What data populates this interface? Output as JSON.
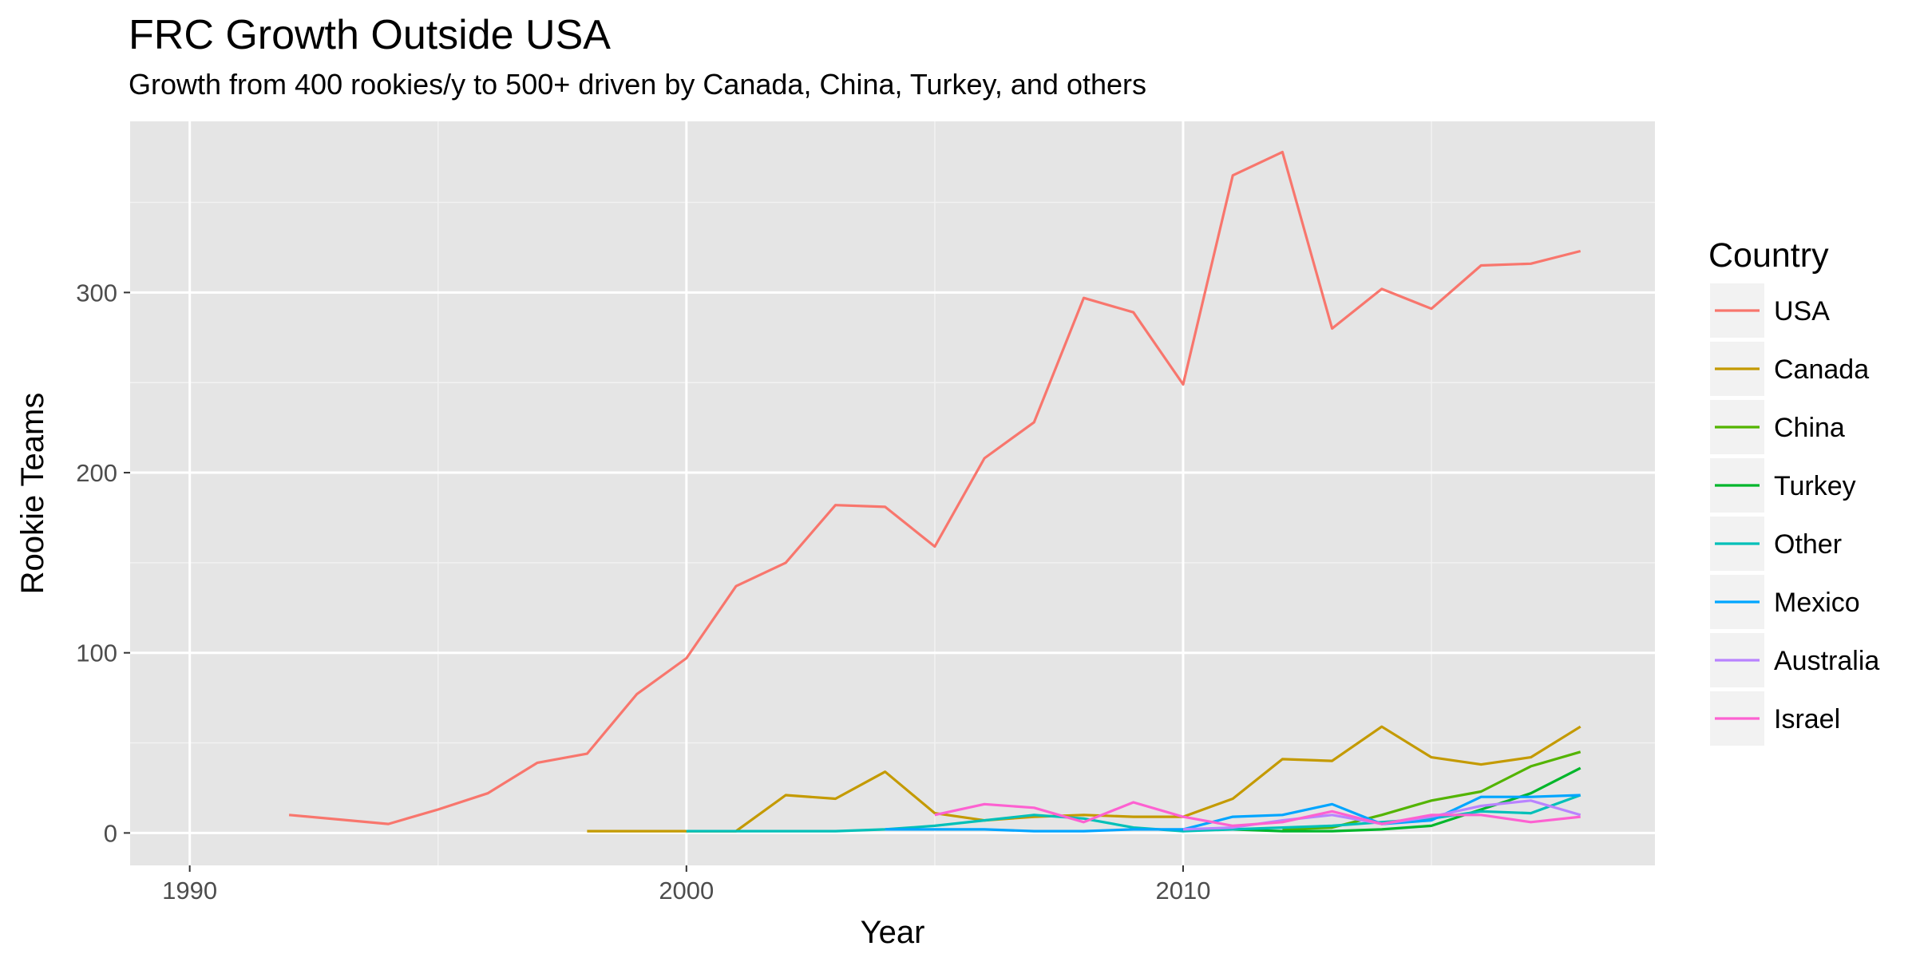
{
  "chart_data": {
    "type": "line",
    "title": "FRC Growth Outside USA",
    "subtitle": "Growth from 400 rookies/y to 500+ driven by Canada, China, Turkey, and others",
    "xlabel": "Year",
    "ylabel": "Rookie Teams",
    "xlim": [
      1988.8,
      2019.5
    ],
    "ylim": [
      -18,
      395
    ],
    "x_ticks": [
      1990,
      2000,
      2010
    ],
    "y_ticks": [
      0,
      100,
      200,
      300
    ],
    "grid": true,
    "legend_title": "Country",
    "legend_position": "right",
    "background": "#e5e5e5",
    "series": [
      {
        "name": "USA",
        "color": "#f8766d",
        "x": [
          1992,
          1994,
          1995,
          1996,
          1997,
          1998,
          1999,
          2000,
          2001,
          2002,
          2003,
          2004,
          2005,
          2006,
          2007,
          2008,
          2009,
          2010,
          2011,
          2012,
          2013,
          2014,
          2015,
          2016,
          2017,
          2018
        ],
        "y": [
          10,
          5,
          13,
          22,
          39,
          44,
          77,
          97,
          137,
          150,
          182,
          181,
          159,
          208,
          228,
          297,
          289,
          249,
          365,
          378,
          280,
          302,
          291,
          315,
          316,
          323
        ]
      },
      {
        "name": "Canada",
        "color": "#c49a00",
        "x": [
          1998,
          1999,
          2000,
          2001,
          2002,
          2003,
          2004,
          2005,
          2006,
          2007,
          2008,
          2009,
          2010,
          2011,
          2012,
          2013,
          2014,
          2015,
          2016,
          2017,
          2018
        ],
        "y": [
          1,
          1,
          1,
          1,
          21,
          19,
          34,
          11,
          7,
          9,
          10,
          9,
          9,
          19,
          41,
          40,
          59,
          42,
          38,
          42,
          59
        ]
      },
      {
        "name": "China",
        "color": "#53b400",
        "x": [
          2012,
          2013,
          2014,
          2015,
          2016,
          2017,
          2018
        ],
        "y": [
          2,
          3,
          10,
          18,
          23,
          37,
          45
        ]
      },
      {
        "name": "Turkey",
        "color": "#00b62b",
        "x": [
          2011,
          2012,
          2013,
          2014,
          2015,
          2016,
          2017,
          2018
        ],
        "y": [
          2,
          1,
          1,
          2,
          4,
          13,
          22,
          36
        ]
      },
      {
        "name": "Other",
        "color": "#00c0b8",
        "x": [
          2000,
          2001,
          2002,
          2003,
          2004,
          2005,
          2006,
          2007,
          2008,
          2009,
          2010,
          2011,
          2012,
          2013,
          2014,
          2015,
          2016,
          2017,
          2018
        ],
        "y": [
          1,
          1,
          1,
          1,
          2,
          4,
          7,
          10,
          8,
          3,
          1,
          2,
          3,
          4,
          6,
          8,
          12,
          11,
          21
        ]
      },
      {
        "name": "Mexico",
        "color": "#00a5ff",
        "x": [
          2004,
          2005,
          2006,
          2007,
          2008,
          2009,
          2010,
          2011,
          2012,
          2013,
          2014,
          2015,
          2016,
          2017,
          2018
        ],
        "y": [
          2,
          2,
          2,
          1,
          1,
          2,
          2,
          9,
          10,
          16,
          5,
          7,
          20,
          20,
          21
        ]
      },
      {
        "name": "Australia",
        "color": "#b983ff",
        "x": [
          2010,
          2011,
          2012,
          2013,
          2014,
          2015,
          2016,
          2017,
          2018
        ],
        "y": [
          2,
          3,
          7,
          10,
          5,
          9,
          15,
          18,
          10
        ]
      },
      {
        "name": "Israel",
        "color": "#fd61d1",
        "x": [
          2005,
          2006,
          2007,
          2008,
          2009,
          2010,
          2011,
          2012,
          2013,
          2014,
          2015,
          2016,
          2017,
          2018
        ],
        "y": [
          10,
          16,
          14,
          6,
          17,
          9,
          4,
          6,
          12,
          5,
          10,
          10,
          6,
          9
        ]
      }
    ]
  }
}
